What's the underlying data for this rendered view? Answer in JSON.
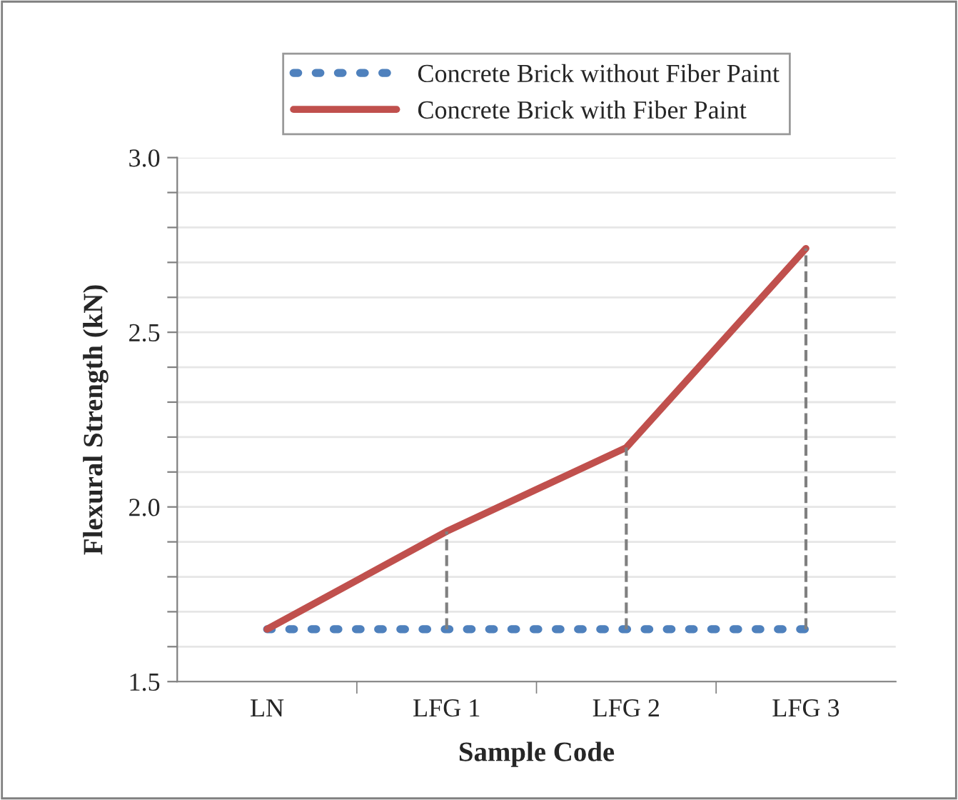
{
  "chart_data": {
    "type": "line",
    "xlabel": "Sample Code",
    "ylabel": "Flexural Strength (kN)",
    "categories": [
      "LN",
      "LFG 1",
      "LFG 2",
      "LFG 3"
    ],
    "series": [
      {
        "name": "Concrete Brick without Fiber Paint",
        "color": "#4f81bd",
        "values": [
          1.65,
          1.65,
          1.65,
          1.65
        ],
        "line_style": "dotted"
      },
      {
        "name": "Concrete Brick with Fiber Paint",
        "color": "#c0504d",
        "values": [
          1.65,
          1.93,
          2.17,
          2.74
        ],
        "line_style": "solid",
        "errors": [
          null,
          [
            1.65,
            1.93
          ],
          [
            1.65,
            2.17
          ],
          [
            1.65,
            2.74
          ]
        ]
      }
    ],
    "ylim": [
      1.5,
      3.0
    ],
    "yticks": [
      1.5,
      {
        "value": 1.6,
        "label": null
      },
      {
        "value": 1.7,
        "label": null
      },
      {
        "value": 1.8,
        "label": null
      },
      {
        "value": 1.9,
        "label": null
      },
      {
        "value": 2.0,
        "label": "2.0"
      },
      {
        "value": 2.1,
        "label": null
      },
      {
        "value": 2.2,
        "label": null
      },
      {
        "value": 2.3,
        "label": null
      },
      {
        "value": 2.4,
        "label": null
      },
      2.5,
      {
        "value": 2.6,
        "label": null
      },
      {
        "value": 2.7,
        "label": null
      },
      {
        "value": 2.8,
        "label": null
      },
      {
        "value": 2.9,
        "label": null
      },
      {
        "value": 3.0,
        "label": "3.0"
      }
    ],
    "grid": "y",
    "legend": "top",
    "marker": "none"
  }
}
